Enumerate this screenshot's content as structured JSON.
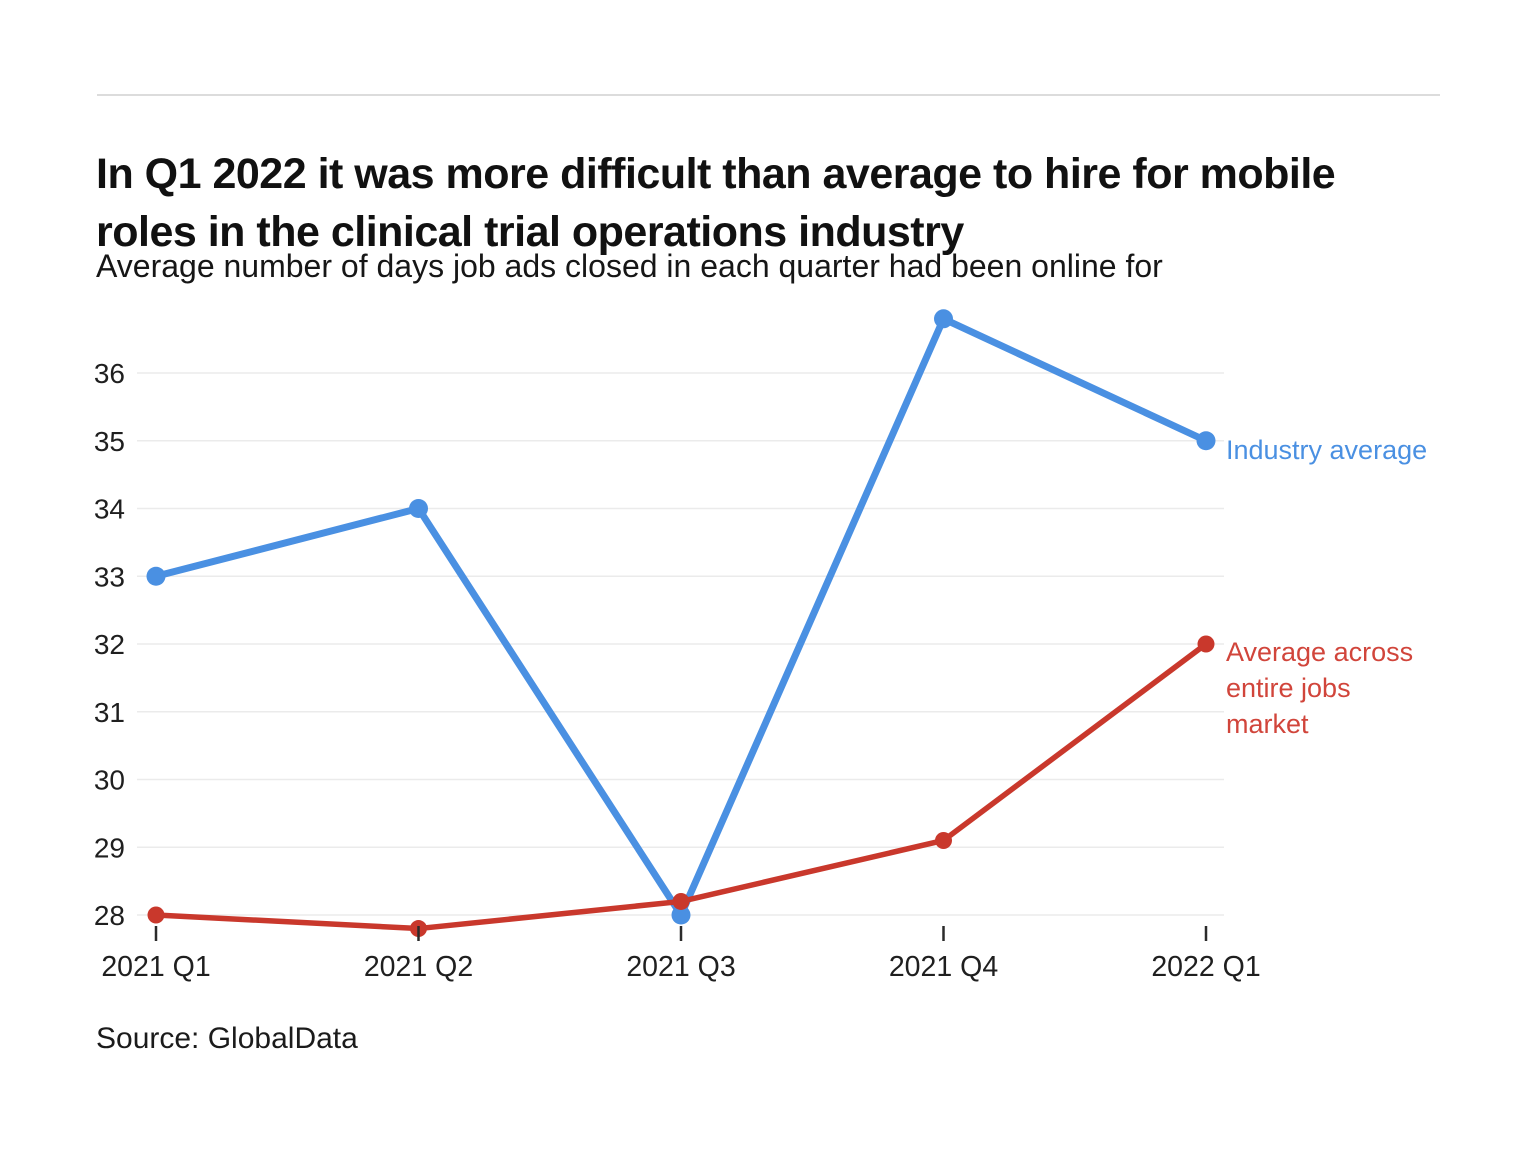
{
  "header": {
    "title": "In Q1 2022 it was more difficult than average to hire for mobile roles in the clinical trial operations industry",
    "subtitle": "Average number of days job ads closed in each quarter had been online for"
  },
  "source": "Source: GlobalData",
  "chart_data": {
    "type": "line",
    "title": "In Q1 2022 it was more difficult than average to hire for mobile roles in the clinical trial operations industry",
    "subtitle": "Average number of days job ads closed in each quarter had been online for",
    "categories": [
      "2021 Q1",
      "2021 Q2",
      "2021 Q3",
      "2021 Q4",
      "2022 Q1"
    ],
    "series": [
      {
        "name": "Industry average",
        "color": "#4a90e2",
        "values": [
          33,
          34,
          28,
          36.8,
          35
        ]
      },
      {
        "name": "Average across entire jobs market",
        "color": "#c9382c",
        "values": [
          28,
          27.8,
          28.2,
          29.1,
          32
        ]
      }
    ],
    "xlabel": "",
    "ylabel": "",
    "yticks": [
      28,
      29,
      30,
      31,
      32,
      33,
      34,
      35,
      36
    ],
    "ylim": [
      27.6,
      37.0
    ],
    "grid": "horizontal-only",
    "legend_position": "right-of-last-point",
    "colors": {
      "gridline": "#ebebeb",
      "tick": "#2b2b2b",
      "axis_text": "#1f1f1f"
    }
  }
}
